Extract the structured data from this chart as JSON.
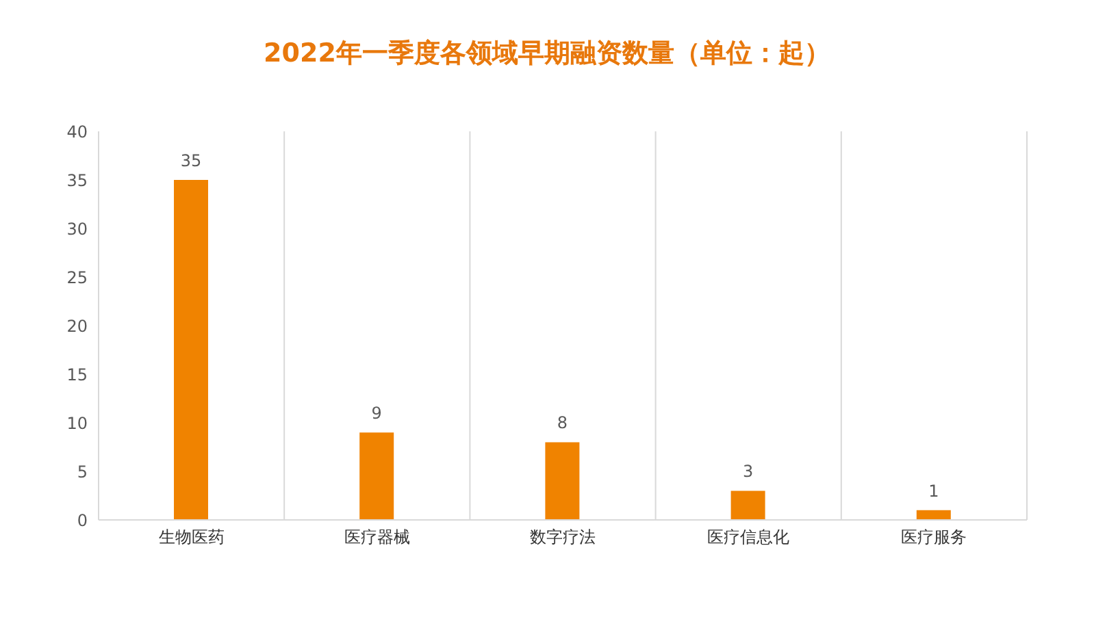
{
  "chart_data": {
    "type": "bar",
    "title": "2022年一季度各领域早期融资数量（单位：起）",
    "categories": [
      "生物医药",
      "医疗器械",
      "数字疗法",
      "医疗信息化",
      "医疗服务"
    ],
    "values": [
      35,
      9,
      8,
      3,
      1
    ],
    "color": "#f08300",
    "ylim": [
      0,
      40
    ],
    "yticks": [
      0,
      5,
      10,
      15,
      20,
      25,
      30,
      35,
      40
    ],
    "grid": "x",
    "data_labels": true
  }
}
